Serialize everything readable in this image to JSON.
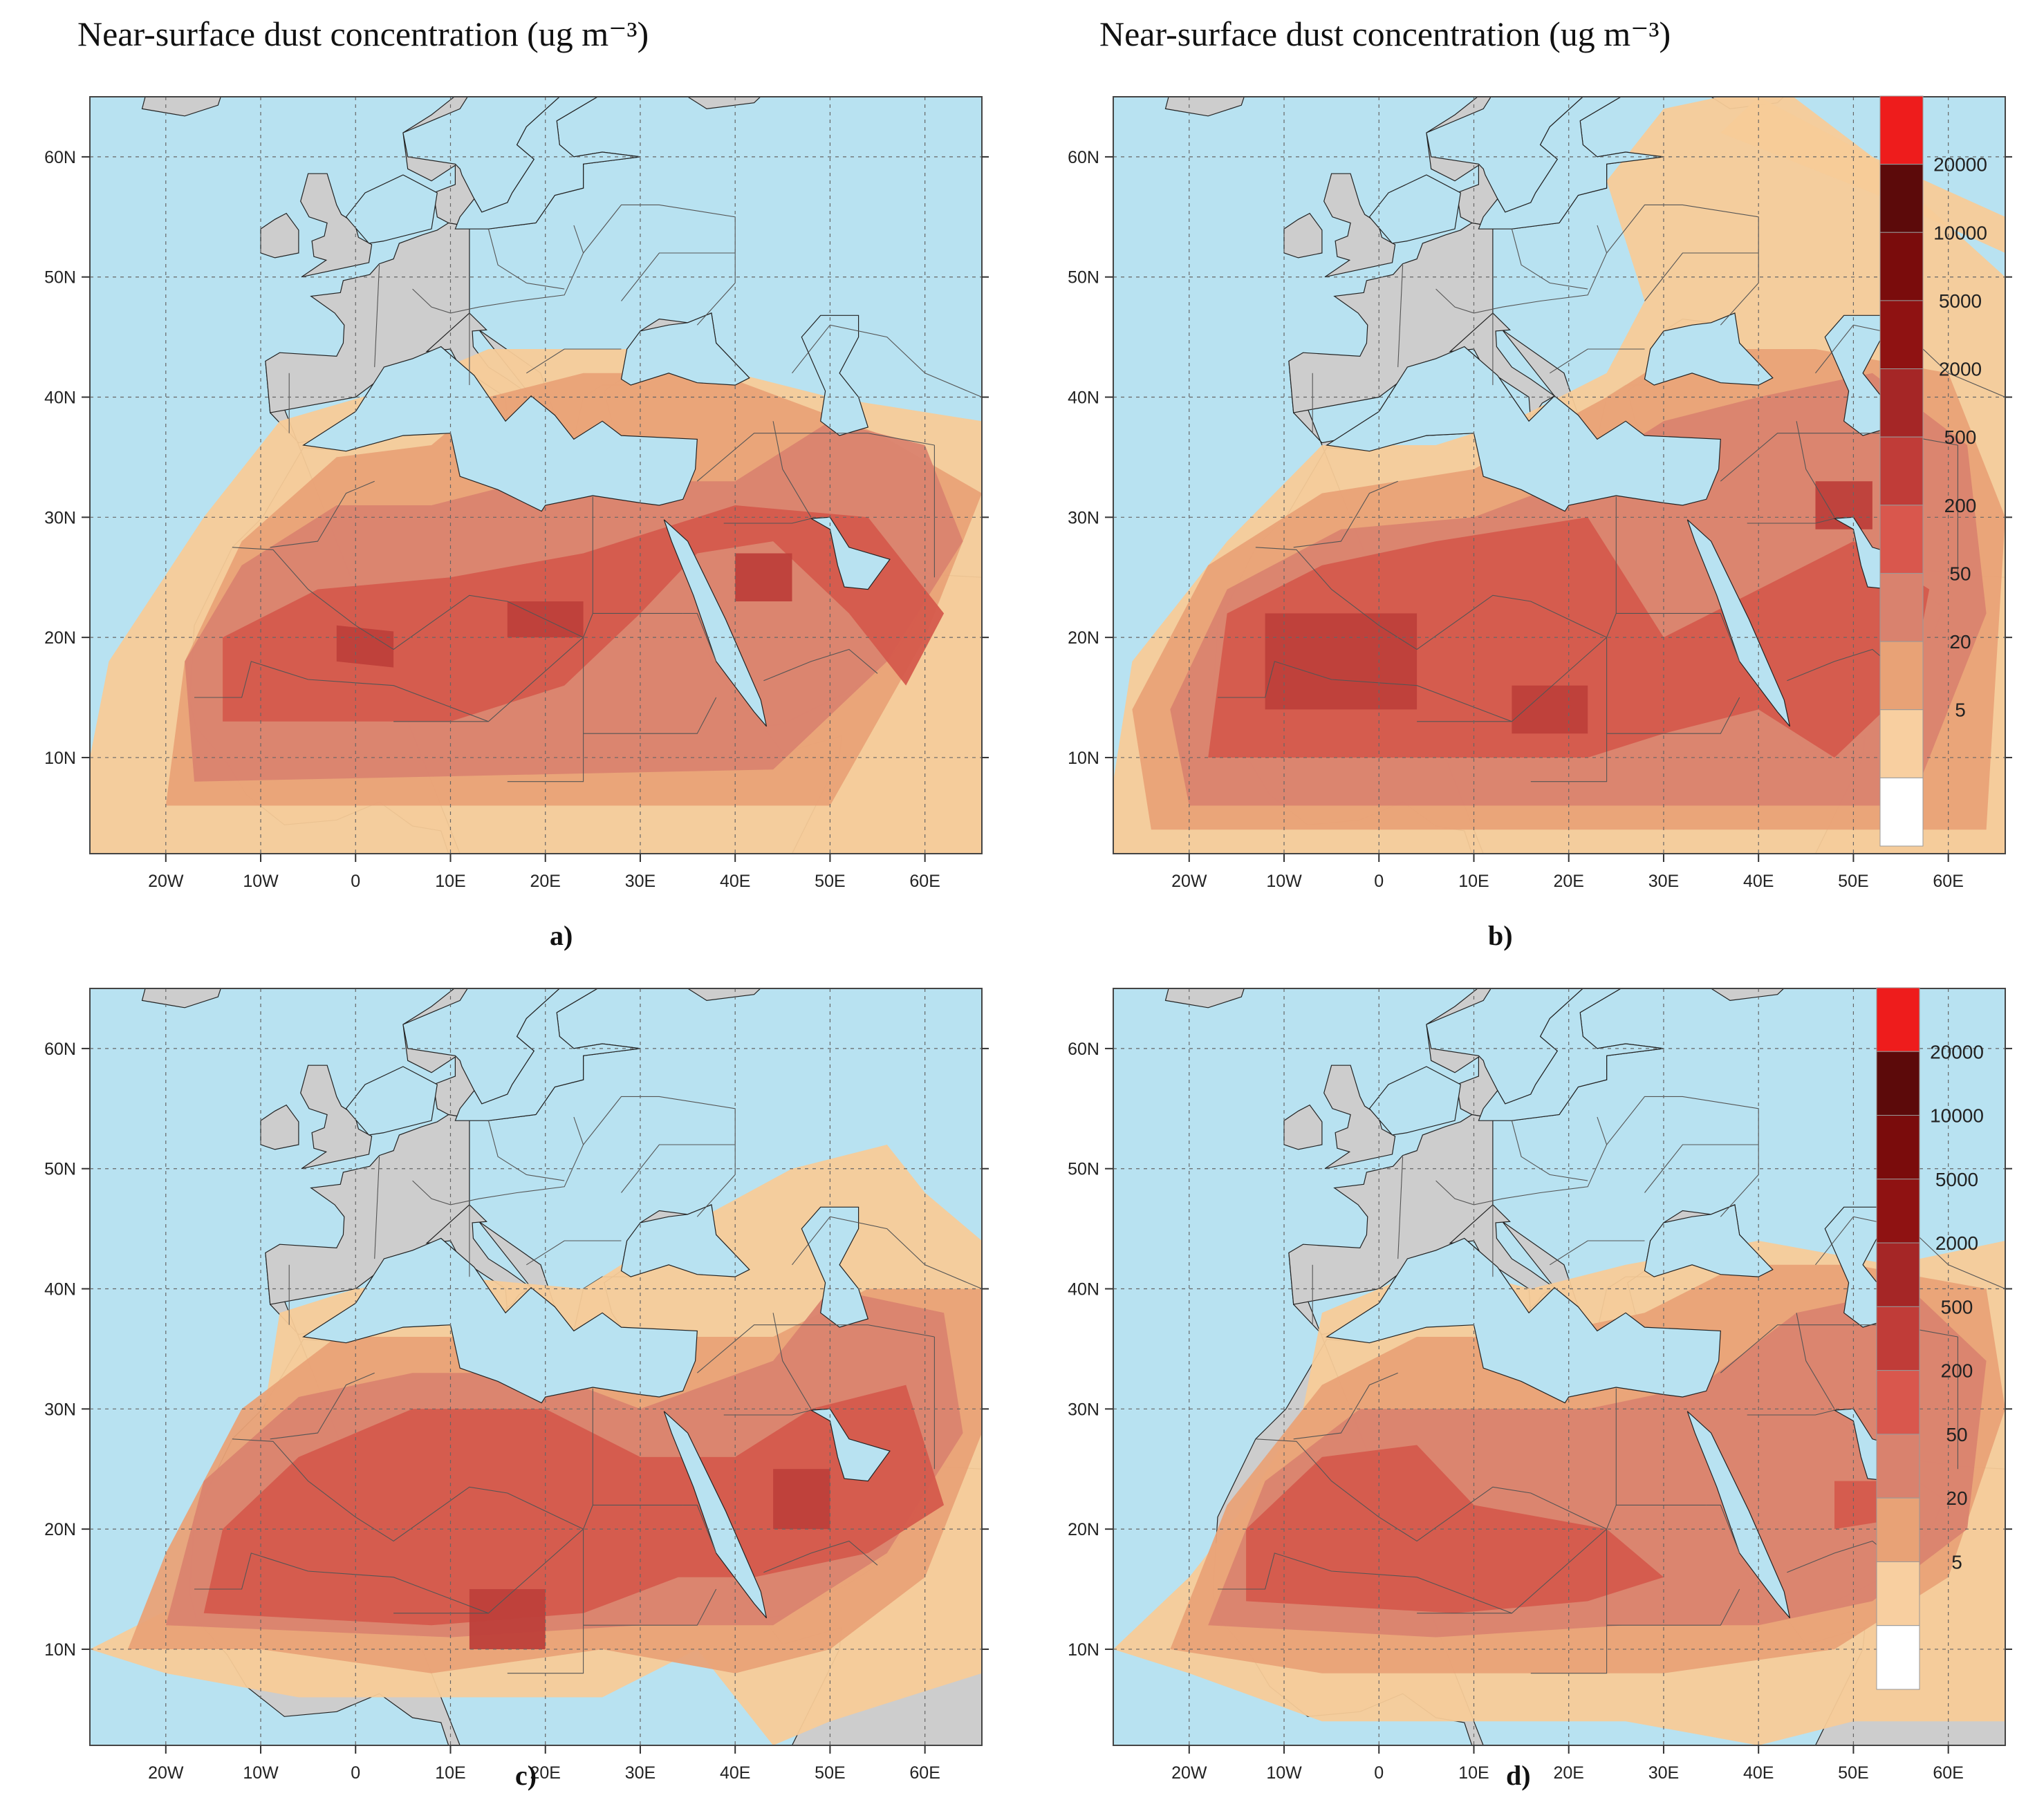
{
  "headings": {
    "left": "Near-surface dust concentration (ug m⁻³)",
    "right": "Near-surface dust concentration (ug m⁻³)"
  },
  "axes": {
    "lat_ticks": [
      "60N",
      "50N",
      "40N",
      "30N",
      "20N",
      "10N"
    ],
    "lon_ticks": [
      "20W",
      "10W",
      "0",
      "10E",
      "20E",
      "30E",
      "40E",
      "50E",
      "60E"
    ]
  },
  "panels": [
    {
      "label": "a)"
    },
    {
      "label": "b)"
    },
    {
      "label": "c)"
    },
    {
      "label": "d)"
    }
  ],
  "legend": {
    "labels": [
      "20000",
      "10000",
      "5000",
      "2000",
      "500",
      "200",
      "50",
      "20",
      "5"
    ],
    "colors": [
      "#ee1c1c",
      "#5c0a0a",
      "#7a0c0c",
      "#8f1212",
      "#a52626",
      "#c03c38",
      "#d9574d",
      "#d9826e",
      "#e8a276",
      "#f8cfa0",
      "#ffffff"
    ]
  },
  "palette": {
    "ocean": "#b8e2f1",
    "land": "#cdcdcd",
    "dust_light": "#f7cb98",
    "dust_orange": "#e9a277",
    "dust_mid": "#da836f",
    "dust_strong": "#d55a4c",
    "dust_dark": "#be3f3a"
  }
}
